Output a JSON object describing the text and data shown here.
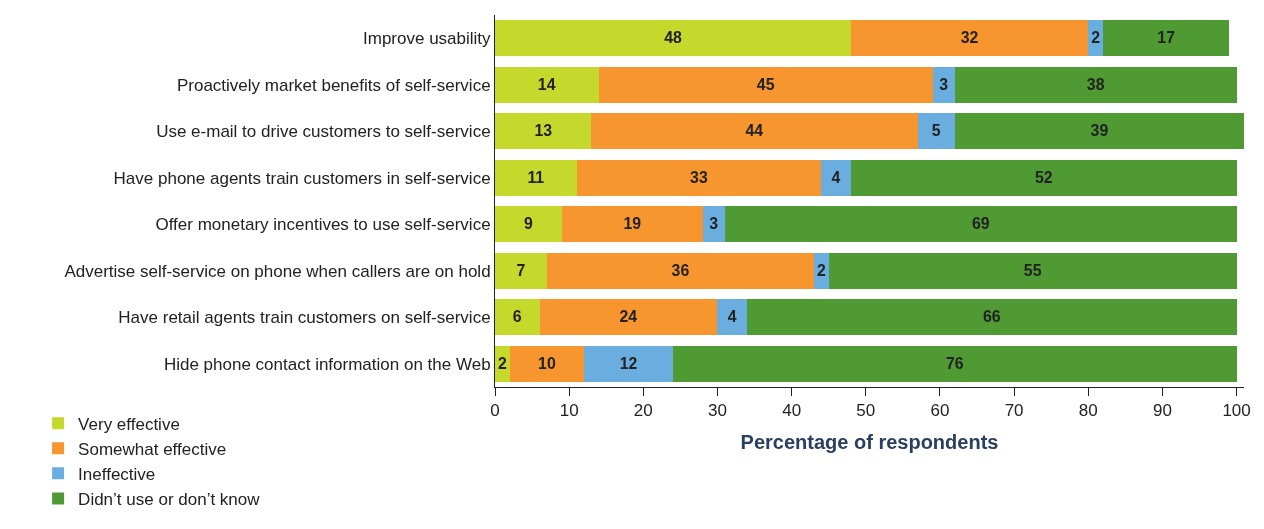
{
  "chart_data": {
    "type": "bar",
    "orientation": "horizontal",
    "stacked": true,
    "data_labels": true,
    "xlabel": "Percentage of respondents",
    "legend": "bottom left",
    "grid": false,
    "categories": [
      "Improve usability",
      "Proactively market benefits of self-service",
      "Use e-mail to drive customers to self-service",
      "Have phone agents train customers in self-service",
      "Offer monetary incentives to use self-service",
      "Advertise self-service on phone when callers are on hold",
      "Have retail agents train customers on self-service",
      "Hide phone contact information on the Web"
    ],
    "xlim": [
      0,
      101
    ],
    "xticks": [
      0,
      10,
      20,
      30,
      40,
      50,
      60,
      70,
      80,
      90,
      100
    ],
    "series": [
      {
        "name": "Very effective",
        "color": "#c5d92d",
        "values": [
          48,
          14,
          13,
          11,
          9,
          7,
          6,
          2
        ]
      },
      {
        "name": "Somewhat effective",
        "color": "#f7962f",
        "values": [
          32,
          45,
          44,
          33,
          19,
          36,
          24,
          10
        ]
      },
      {
        "name": "Ineffective",
        "color": "#6aaee0",
        "values": [
          2,
          3,
          5,
          4,
          3,
          2,
          4,
          12
        ]
      },
      {
        "name": "Didn’t use or don’t know",
        "color": "#4f9a33",
        "values": [
          17,
          38,
          39,
          52,
          69,
          55,
          66,
          76
        ]
      }
    ]
  }
}
